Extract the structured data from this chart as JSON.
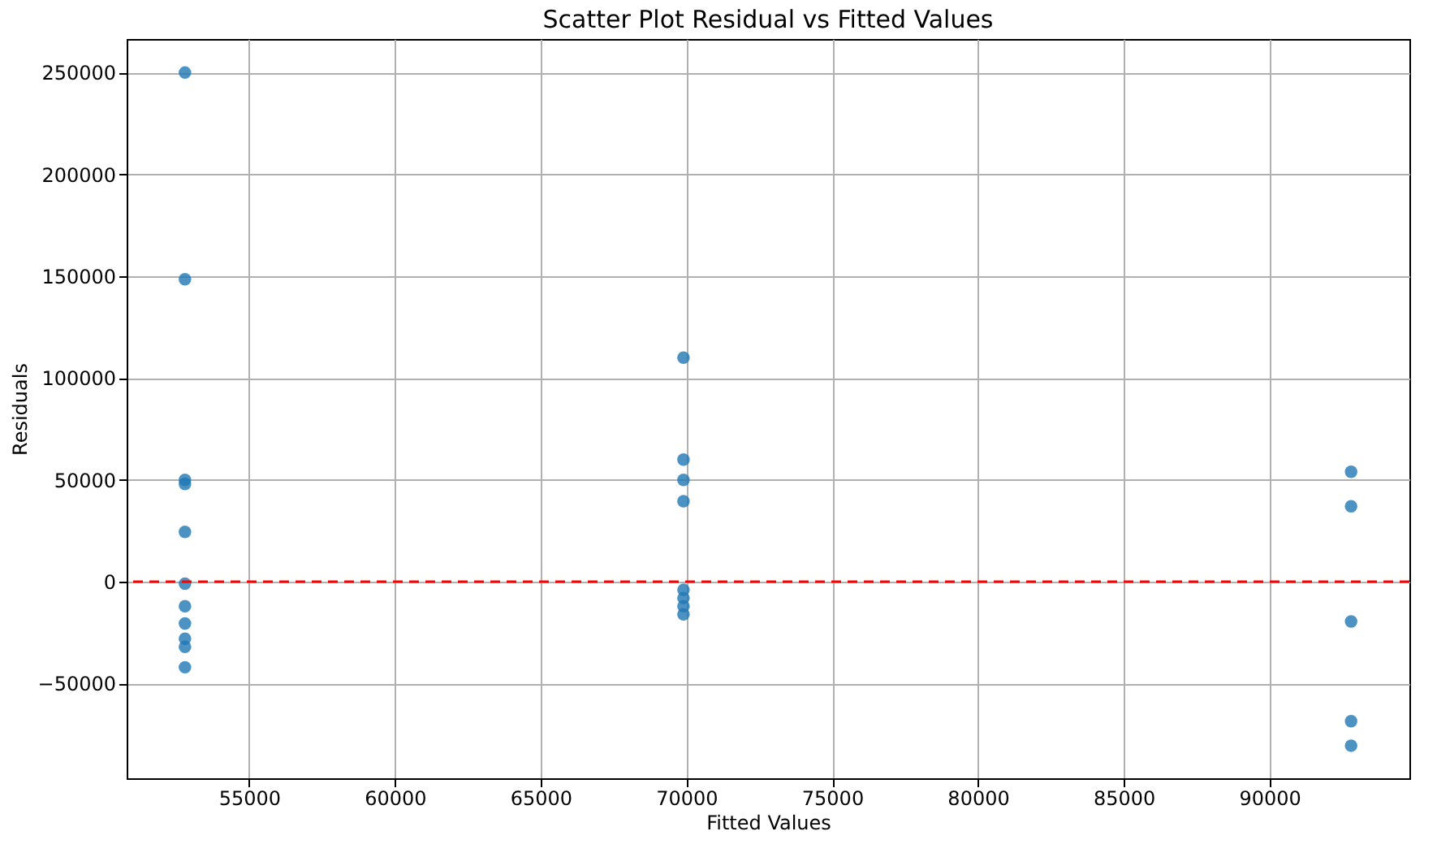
{
  "chart_data": {
    "type": "scatter",
    "title": "Scatter Plot Residual vs Fitted Values",
    "xlabel": "Fitted Values",
    "ylabel": "Residuals",
    "x": [
      52800,
      52800,
      52800,
      52800,
      52800,
      52800,
      52800,
      52800,
      52800,
      52800,
      52800,
      69900,
      69900,
      69900,
      69900,
      69900,
      69900,
      69900,
      69900,
      92800,
      92800,
      92800,
      92800,
      92800
    ],
    "series": [
      {
        "color": "#1f77b4",
        "values": [
          250000,
          148500,
          50000,
          48000,
          24500,
          -1000,
          -12000,
          -20500,
          -28000,
          -32000,
          -42000,
          110000,
          60000,
          50000,
          39500,
          -4000,
          -8000,
          -12000,
          -16000,
          54000,
          37000,
          -19500,
          -68500,
          -80500
        ]
      }
    ],
    "xlim": [
      50800,
      94800
    ],
    "ylim": [
      -96500,
      266500
    ],
    "xticks": [
      55000,
      60000,
      65000,
      70000,
      75000,
      80000,
      85000,
      90000
    ],
    "yticks": [
      -50000,
      0,
      50000,
      100000,
      150000,
      200000,
      250000
    ],
    "grid": true,
    "marker": "circle",
    "ref_lines": [
      {
        "axis": "y",
        "value": 0,
        "color": "#ff0000",
        "line_style": "dashed"
      }
    ]
  }
}
